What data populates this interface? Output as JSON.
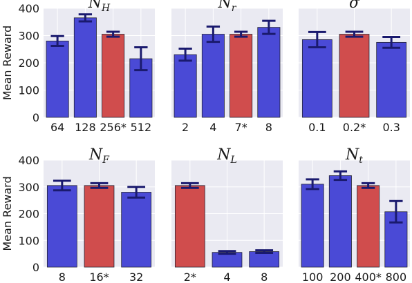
{
  "colors": {
    "default_bar": "#4a4ad6",
    "chosen_bar": "#d04d4d",
    "error_bar": "#1a1a6e",
    "panel_bg": "#eaeaf2",
    "grid": "#ffffff"
  },
  "chart_data": [
    {
      "type": "bar",
      "title": {
        "main": "N",
        "sub": "H"
      },
      "categories": [
        "64",
        "128",
        "256*",
        "512"
      ],
      "values": [
        280,
        365,
        305,
        215
      ],
      "errors": [
        18,
        13,
        9,
        42
      ],
      "highlight_index": 2,
      "ylabel": "Mean Reward",
      "ylim": [
        0,
        400
      ],
      "yticks": [
        "0",
        "100",
        "200",
        "300",
        "400"
      ],
      "grid": true
    },
    {
      "type": "bar",
      "title": {
        "main": "N",
        "sub": "r"
      },
      "categories": [
        "2",
        "4",
        "7*",
        "8"
      ],
      "values": [
        230,
        305,
        305,
        330
      ],
      "errors": [
        22,
        28,
        9,
        24
      ],
      "highlight_index": 2,
      "ylabel": "",
      "ylim": [
        0,
        400
      ],
      "yticks": [
        "0",
        "100",
        "200",
        "300",
        "400"
      ],
      "grid": true
    },
    {
      "type": "bar",
      "title": {
        "main": "σ",
        "sub": ""
      },
      "categories": [
        "0.1",
        "0.2*",
        "0.3"
      ],
      "values": [
        285,
        305,
        275
      ],
      "errors": [
        28,
        9,
        20
      ],
      "highlight_index": 1,
      "ylabel": "",
      "ylim": [
        0,
        400
      ],
      "yticks": [
        "0",
        "100",
        "200",
        "300",
        "400"
      ],
      "grid": true
    },
    {
      "type": "bar",
      "title": {
        "main": "N",
        "sub": "F"
      },
      "categories": [
        "8",
        "16*",
        "32"
      ],
      "values": [
        305,
        305,
        280
      ],
      "errors": [
        18,
        9,
        20
      ],
      "highlight_index": 1,
      "ylabel": "Mean Reward",
      "ylim": [
        0,
        400
      ],
      "yticks": [
        "0",
        "100",
        "200",
        "300",
        "400"
      ],
      "grid": true
    },
    {
      "type": "bar",
      "title": {
        "main": "N",
        "sub": "L"
      },
      "categories": [
        "2*",
        "4",
        "8"
      ],
      "values": [
        305,
        55,
        58
      ],
      "errors": [
        9,
        5,
        5
      ],
      "highlight_index": 0,
      "ylabel": "",
      "ylim": [
        0,
        400
      ],
      "yticks": [
        "0",
        "100",
        "200",
        "300",
        "400"
      ],
      "grid": true
    },
    {
      "type": "bar",
      "title": {
        "main": "N",
        "sub": "t"
      },
      "categories": [
        "100",
        "200",
        "400*",
        "800"
      ],
      "values": [
        310,
        342,
        305,
        207
      ],
      "errors": [
        18,
        16,
        9,
        40
      ],
      "highlight_index": 2,
      "ylabel": "",
      "ylim": [
        0,
        400
      ],
      "yticks": [
        "0",
        "100",
        "200",
        "300",
        "400"
      ],
      "grid": true
    }
  ]
}
